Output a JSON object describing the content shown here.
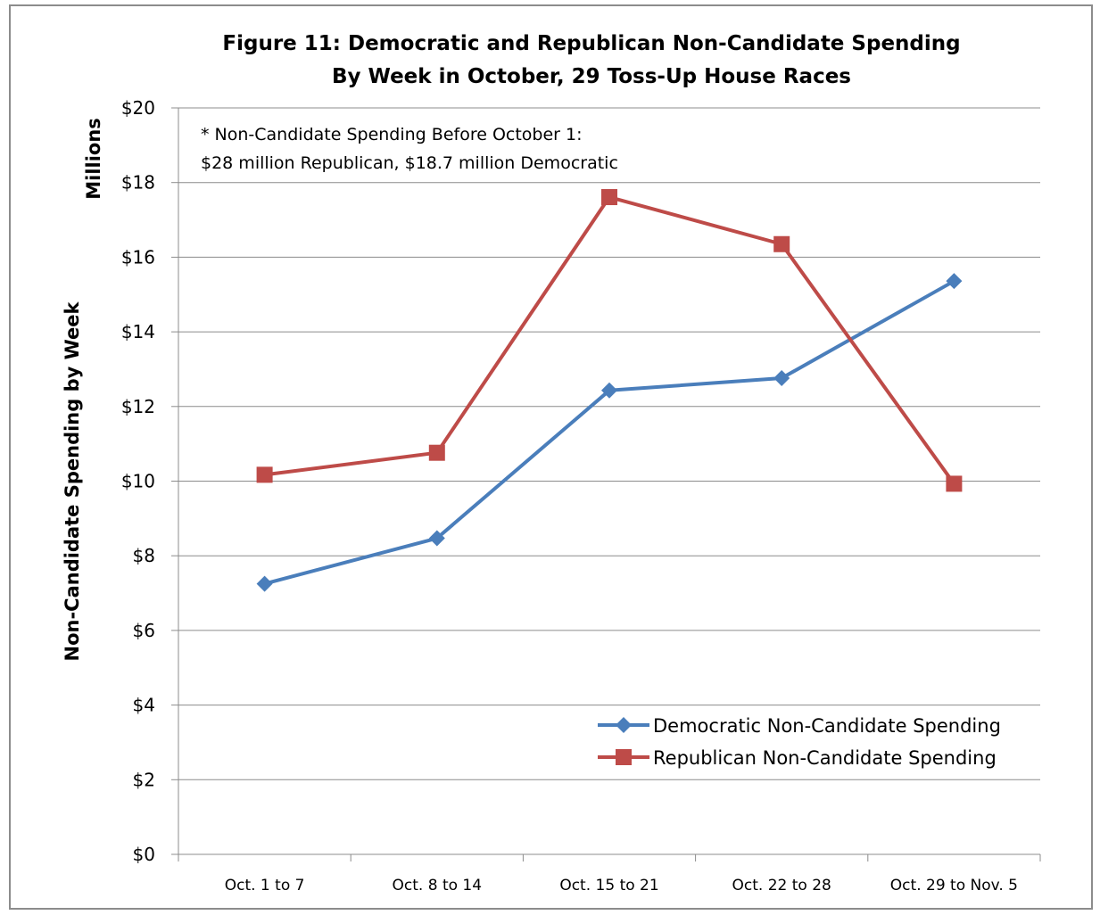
{
  "chart_data": {
    "type": "line",
    "title": [
      "Figure 11: Democratic and Republican Non-Candidate Spending",
      "By Week in October, 29 Toss-Up House Races"
    ],
    "ylabel": "Non-Candidate Spending by Week",
    "yunit": "Millions",
    "xlabel": "",
    "categories": [
      "Oct. 1 to 7",
      "Oct. 8 to 14",
      "Oct. 15 to 21",
      "Oct. 22 to 28",
      "Oct. 29 to Nov. 5"
    ],
    "ylim": [
      0,
      20
    ],
    "yticks": [
      0,
      2,
      4,
      6,
      8,
      10,
      12,
      14,
      16,
      18,
      20
    ],
    "ytick_labels": [
      "$0",
      "$2",
      "$4",
      "$6",
      "$8",
      "$10",
      "$12",
      "$14",
      "$16",
      "$18",
      "$20"
    ],
    "grid": true,
    "legend_position": "bottom-right",
    "series": [
      {
        "name": "Democratic Non-Candidate Spending",
        "color": "#4a7ebb",
        "marker": "diamond",
        "values": [
          7.25,
          8.47,
          12.43,
          12.76,
          15.36
        ]
      },
      {
        "name": "Republican Non-Candidate Spending",
        "color": "#be4b48",
        "marker": "square",
        "values": [
          10.17,
          10.76,
          17.61,
          16.35,
          9.93
        ]
      }
    ],
    "annotation": [
      "* Non-Candidate Spending Before October 1:",
      "$28 million Republican, $18.7 million Democratic"
    ]
  }
}
